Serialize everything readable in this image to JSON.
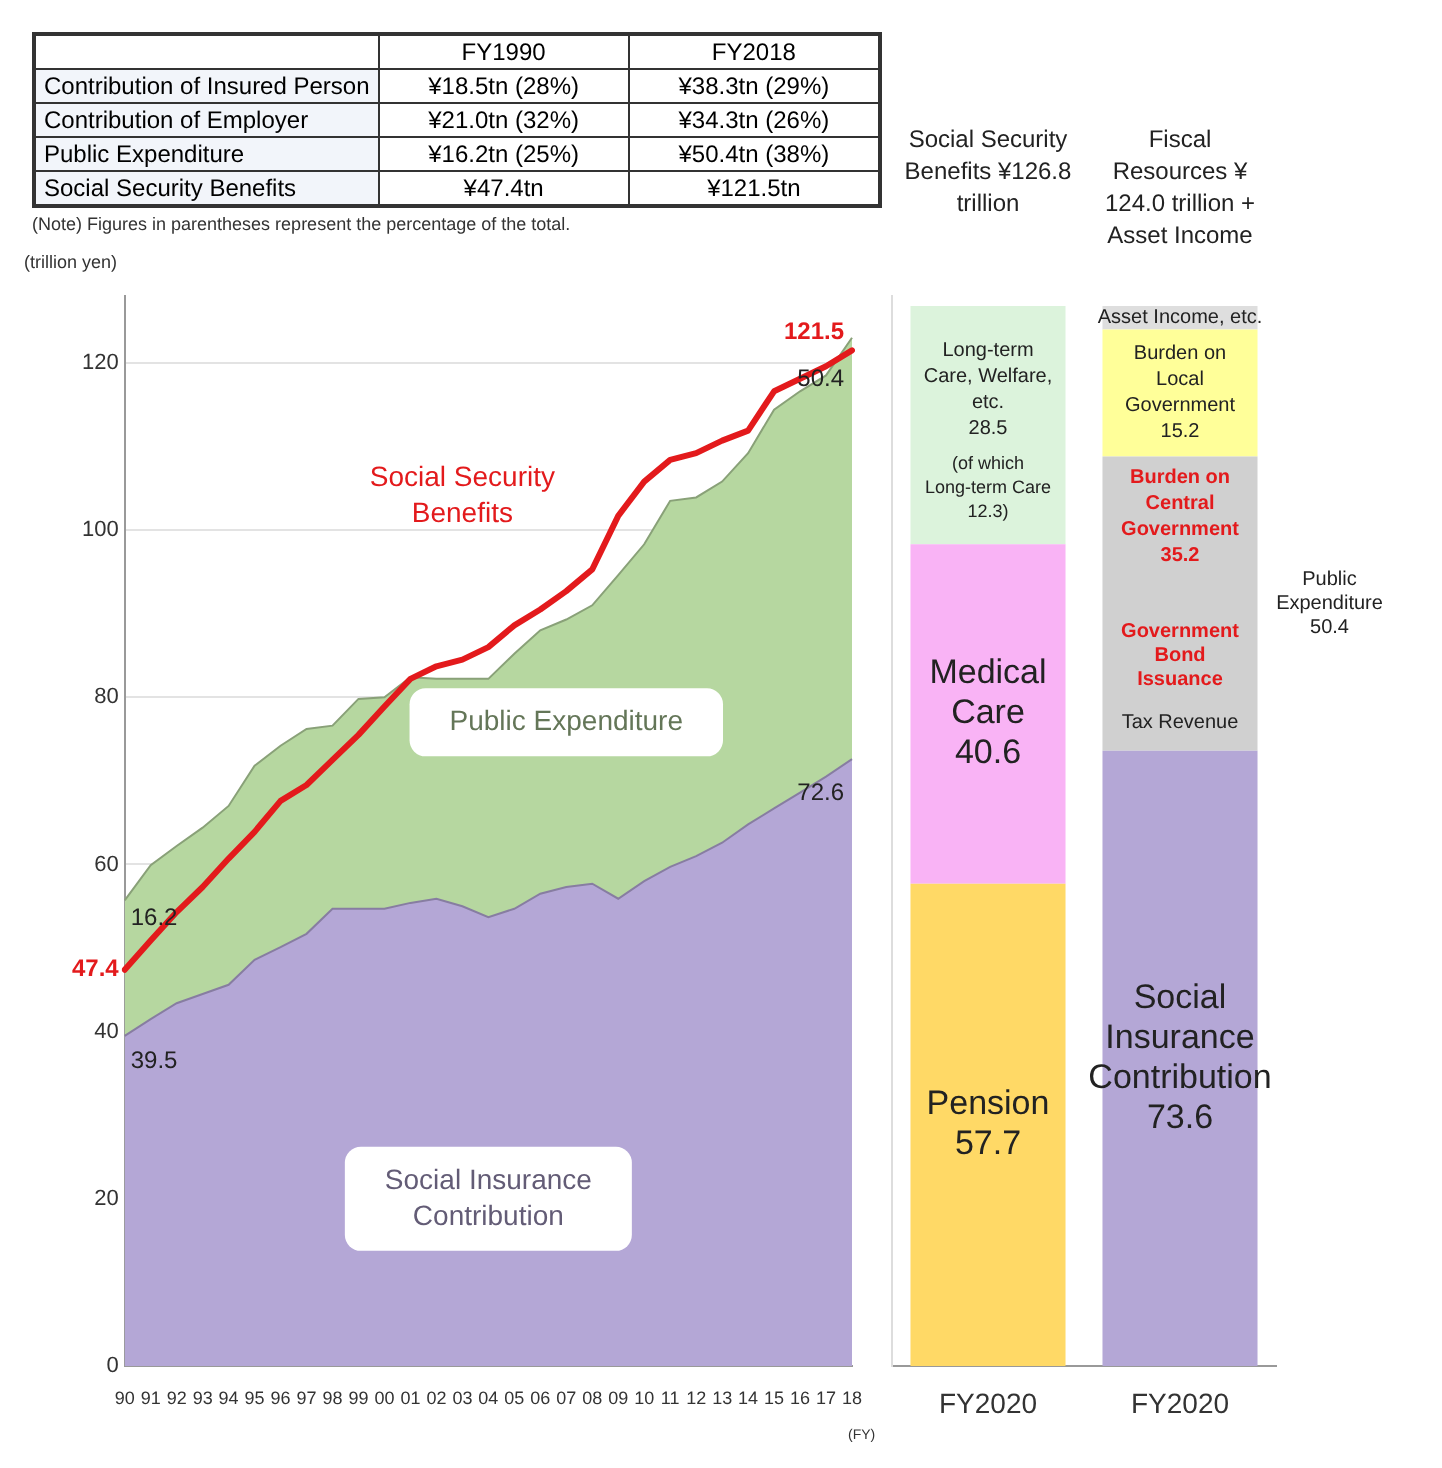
{
  "chart_data": [
    {
      "type": "other",
      "categories": [
        "FY1990",
        "FY2018"
      ],
      "y_categories": [
        "Contribution of Insured Person",
        "Contribution of Employer",
        "Public Expenditure",
        "Social Security Benefits"
      ],
      "cell_labels": [
        [
          "¥18.5tn (28%)",
          "¥38.3tn (29%)"
        ],
        [
          "¥21.0tn (32%)",
          "¥34.3tn (26%)"
        ],
        [
          "¥16.2tn (25%)",
          "¥50.4tn (38%)"
        ],
        [
          "¥47.4tn",
          "¥121.5tn"
        ]
      ],
      "annotations": [
        "(Note) Figures in parentheses represent the percentage of the total."
      ]
    },
    {
      "type": "area",
      "ylabel": "(trillion yen)",
      "xlabel": "(FY)",
      "categories": [
        "90",
        "91",
        "92",
        "93",
        "94",
        "95",
        "96",
        "97",
        "98",
        "99",
        "00",
        "01",
        "02",
        "03",
        "04",
        "05",
        "06",
        "07",
        "08",
        "09",
        "10",
        "11",
        "12",
        "13",
        "14",
        "15",
        "16",
        "17",
        "18"
      ],
      "ylim": [
        0,
        128
      ],
      "yticks": [
        0,
        20,
        40,
        60,
        80,
        100,
        120
      ],
      "grid": "y",
      "stacked": true,
      "series": [
        {
          "name": "Social Insurance Contribution",
          "color": "#b4a7d6",
          "values": [
            39.5,
            41.5,
            43.4,
            44.5,
            45.6,
            48.6,
            50.1,
            51.7,
            54.7,
            54.7,
            54.7,
            55.4,
            55.9,
            55.0,
            53.7,
            54.7,
            56.5,
            57.3,
            57.7,
            55.9,
            58.0,
            59.7,
            61.0,
            62.6,
            64.8,
            66.7,
            68.6,
            70.5,
            72.6
          ],
          "value_labels": [
            "39.5",
            null,
            null,
            null,
            null,
            null,
            null,
            null,
            null,
            null,
            null,
            null,
            null,
            null,
            null,
            null,
            null,
            null,
            null,
            null,
            null,
            null,
            null,
            null,
            null,
            null,
            null,
            null,
            "72.6"
          ]
        },
        {
          "name": "Public Expenditure",
          "color": "#b6d7a0",
          "values": [
            16.2,
            18.4,
            18.8,
            19.9,
            21.4,
            23.2,
            24.1,
            24.5,
            21.9,
            25.1,
            25.3,
            27.0,
            26.3,
            27.2,
            28.5,
            30.5,
            31.5,
            32.0,
            33.3,
            38.7,
            40.3,
            43.8,
            42.9,
            43.2,
            44.4,
            47.7,
            48.0,
            48.0,
            50.4
          ],
          "value_labels": [
            "16.2",
            null,
            null,
            null,
            null,
            null,
            null,
            null,
            null,
            null,
            null,
            null,
            null,
            null,
            null,
            null,
            null,
            null,
            null,
            null,
            null,
            null,
            null,
            null,
            null,
            null,
            null,
            null,
            "50.4"
          ]
        },
        {
          "name": "Social Security Benefits",
          "type": "line",
          "color": "#e31a1c",
          "values": [
            47.4,
            50.9,
            54.3,
            57.3,
            60.7,
            63.9,
            67.6,
            69.5,
            72.5,
            75.5,
            78.9,
            82.2,
            83.7,
            84.5,
            86.0,
            88.6,
            90.5,
            92.7,
            95.3,
            101.7,
            105.8,
            108.4,
            109.2,
            110.7,
            111.9,
            116.6,
            118.1,
            119.6,
            121.5
          ],
          "value_labels": [
            "47.4",
            null,
            null,
            null,
            null,
            null,
            null,
            null,
            null,
            null,
            null,
            null,
            null,
            null,
            null,
            null,
            null,
            null,
            null,
            null,
            null,
            null,
            null,
            null,
            null,
            null,
            null,
            null,
            "121.5"
          ]
        }
      ]
    },
    {
      "type": "bar",
      "categories": [
        "FY2020",
        "FY2020"
      ],
      "stacked": true,
      "ylim": [
        0,
        128
      ],
      "yticks": [
        0,
        20,
        40,
        60,
        80,
        100,
        120
      ],
      "tick_labels": "x",
      "series": [
        {
          "name": "Pension",
          "color": "#ffd966",
          "values": [
            57.7,
            null
          ],
          "value_labels": [
            "57.7",
            null
          ]
        },
        {
          "name": "Medical Care",
          "color": "#f9b3f5",
          "values": [
            40.6,
            null
          ],
          "value_labels": [
            "40.6",
            null
          ]
        },
        {
          "name": "Long-term Care, Welfare, etc.",
          "color": "#dcf3dc",
          "values": [
            28.5,
            null
          ],
          "value_labels": [
            "28.5",
            null
          ]
        },
        {
          "name": "Social Insurance Contribution",
          "color": "#b4a7d6",
          "values": [
            null,
            73.6
          ],
          "value_labels": [
            null,
            "73.6"
          ]
        },
        {
          "name": "Burden on Central Government",
          "color": "#d0d0d0",
          "values": [
            null,
            35.2
          ],
          "value_labels": [
            null,
            "35.2"
          ]
        },
        {
          "name": "Burden on Local Government",
          "color": "#ffff99",
          "values": [
            null,
            15.2
          ],
          "value_labels": [
            null,
            "15.2"
          ]
        },
        {
          "name": "Asset Income, etc.",
          "color": "#dedede",
          "values": [
            null,
            2.8
          ]
        }
      ],
      "annotations": [
        "Social Security Benefits ¥126.8 trillion",
        "Fiscal Resources ¥ 124.0 trillion + Asset Income",
        "(of which Long-term Care 12.3)",
        "Public Expenditure 50.4",
        "Tax Revenue",
        "Government Bond Issuance"
      ]
    }
  ]
}
